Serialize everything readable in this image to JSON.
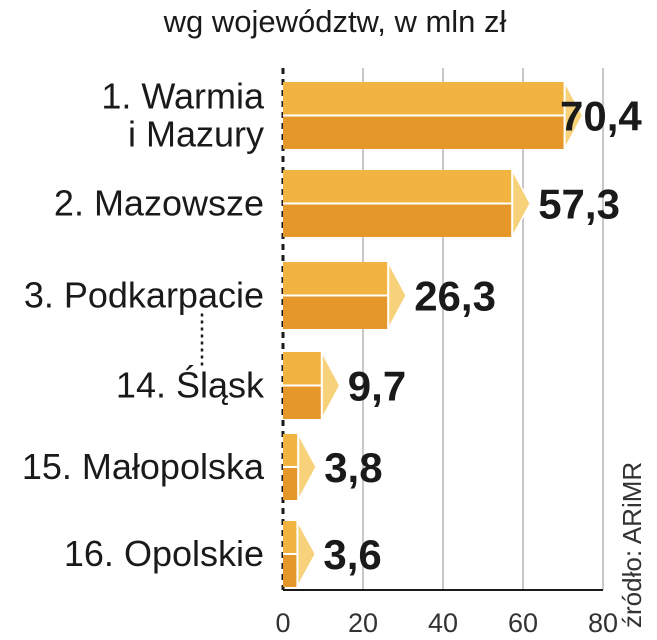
{
  "chart_data": {
    "type": "bar",
    "orientation": "horizontal",
    "subtitle": "wg województw, w mln zł",
    "categories": [
      [
        "1. Warmia",
        "i Mazury"
      ],
      [
        "2. Mazowsze"
      ],
      [
        "3. Podkarpacie"
      ],
      [
        "14. Śląsk"
      ],
      [
        "15. Małopolska"
      ],
      [
        "16. Opolskie"
      ]
    ],
    "values": [
      70.4,
      57.3,
      26.3,
      9.7,
      3.8,
      3.6
    ],
    "value_labels": [
      "70,4",
      "57,3",
      "26,3",
      "9,7",
      "3,8",
      "3,6"
    ],
    "xlim": [
      0,
      80
    ],
    "xticks": [
      0,
      20,
      40,
      60,
      80
    ],
    "gridlines": true,
    "ellipsis_between": [
      2,
      3
    ],
    "source": "źródło: ARiMR",
    "colors": {
      "bar_top": "#f2b440",
      "bar_bottom": "#e5972a",
      "bar_end": "#f8d27a",
      "edge": "#ffffff",
      "grid": "#b5b5b5",
      "axis": "#1a1a1a"
    }
  }
}
